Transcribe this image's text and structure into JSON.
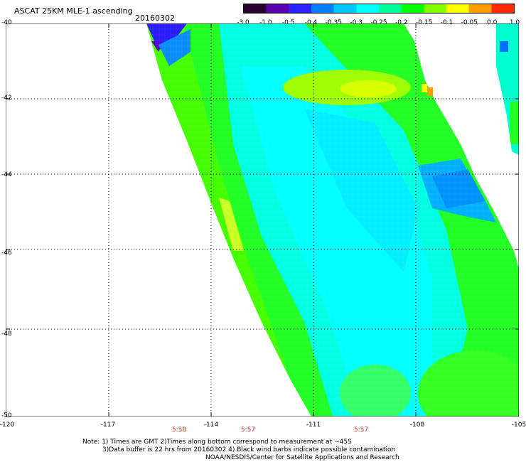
{
  "header": {
    "title": "ASCAT 25KM MLE-1 ascending",
    "date": "20160302"
  },
  "colorbar": {
    "labels": [
      "-3.0",
      "-1.0",
      "-0.5",
      "-0.4",
      "-0.35",
      "-0.3",
      "-0.25",
      "-0.2",
      "-0.15",
      "-0.1",
      "-0.05",
      "0.0",
      "1.0"
    ],
    "colors": [
      "#2a0030",
      "#5c00b0",
      "#2a22ff",
      "#0080ff",
      "#00c8ff",
      "#00ffff",
      "#00ff9c",
      "#00ff00",
      "#7fff00",
      "#ffff00",
      "#ff9d00",
      "#ff2a00"
    ]
  },
  "map": {
    "lat_labels": [
      "-40",
      "-42",
      "-44",
      "-46",
      "-48",
      "-50"
    ],
    "lon_labels": [
      "-120",
      "-117",
      "-114",
      "-111",
      "-108",
      "-105"
    ],
    "lon_range": [
      -120,
      -105
    ],
    "lat_range": [
      -50,
      -40
    ],
    "swath_times": [
      "5:58",
      "5:57",
      "5:57"
    ]
  },
  "notes": {
    "line1": "Note: 1) Times are GMT 2)Times along bottom correspond to measurement at ~45S",
    "line2": "3)Data buffer is 22 hrs from 20160302 4) Black wind barbs indicate possible contamination",
    "line3": "NOAA/NESDIS/Center for Satellite Applications and Research"
  }
}
